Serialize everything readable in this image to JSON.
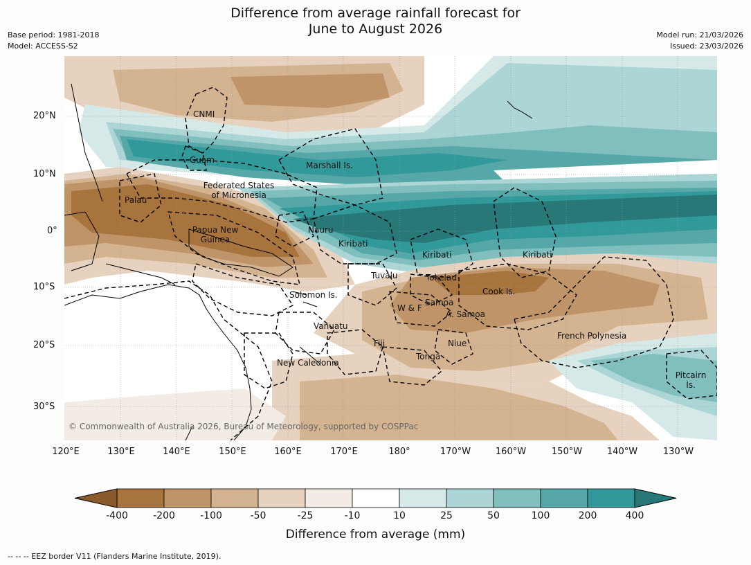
{
  "header": {
    "title_line1": "Difference from average rainfall forecast for",
    "title_line2": "June to August 2026",
    "base_period": "Base period: 1981-2018",
    "model": "Model: ACCESS-S2",
    "model_run": "Model run: 21/03/2026",
    "issued": "Issued: 23/03/2026"
  },
  "axes": {
    "lat_labels": [
      "20°N",
      "10°N",
      "0°",
      "10°S",
      "20°S",
      "30°S"
    ],
    "lon_labels": [
      "120°E",
      "130°E",
      "140°E",
      "150°E",
      "160°E",
      "170°E",
      "180°",
      "170°W",
      "160°W",
      "150°W",
      "140°W",
      "130°W"
    ]
  },
  "regions": {
    "cnmi": "CNMI",
    "guam": "Guam",
    "marshall": "Marshall Is.",
    "fsm_1": "Federated States",
    "fsm_2": "of Micronesia",
    "palau": "Palau",
    "png_1": "Papua New",
    "png_2": "Guinea",
    "nauru": "Nauru",
    "kiribati_w": "Kiribati",
    "kiribati_c": "Kiribati",
    "kiribati_e": "Kiribati",
    "tuvalu": "Tuvalu",
    "tokelau": "Tokelau",
    "cook": "Cook Is.",
    "solomon": "Solomon Is.",
    "wf": "W & F",
    "samoa": "Samoa",
    "asamoa": "A. Samoa",
    "vanuatu": "Vanuatu",
    "fiji": "Fiji",
    "niue": "Niue",
    "tonga": "Tonga",
    "french_polynesia": "French Polynesia",
    "new_caledonia": "New Caledonia",
    "pitcairn_1": "Pitcairn",
    "pitcairn_2": "Is."
  },
  "copyright": "© Commonwealth of Australia 2026, Bureau of Meteorology, supported by COSPPac",
  "colorbar": {
    "ticks": [
      "-400",
      "-200",
      "-100",
      "-50",
      "-25",
      "-10",
      "10",
      "25",
      "50",
      "100",
      "200",
      "400"
    ],
    "colors": {
      "below_min": "#8a5a2b",
      "bins": [
        "#a8743d",
        "#bf9468",
        "#d4b390",
        "#e6d2bf",
        "#f3ece4",
        "#ffffff",
        "#d5e9e8",
        "#acd6d5",
        "#81bfbf",
        "#56a8a8",
        "#32999a"
      ],
      "above_max": "#287878"
    },
    "label": "Difference from average (mm)"
  },
  "footer": "--  --  -- EEZ border V11 (Flanders Marine Institute, 2019)."
}
